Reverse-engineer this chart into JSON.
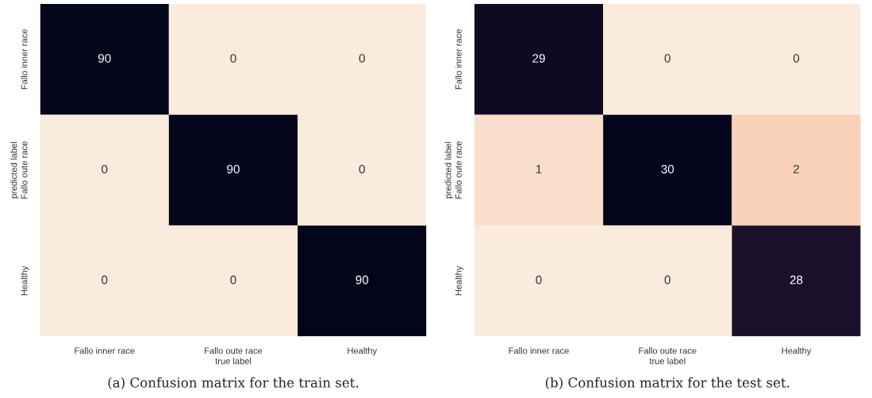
{
  "chart_data": [
    {
      "type": "heatmap",
      "categories": [
        "Fallo inner race",
        "Fallo oute race",
        "Healthy"
      ],
      "y_categories": [
        "Fallo inner race",
        "Fallo oute race",
        "Healthy"
      ],
      "xlabel": "true label",
      "ylabel": "predicted label",
      "data_labels": true,
      "cells": [
        [
          90,
          0,
          0
        ],
        [
          0,
          90,
          0
        ],
        [
          0,
          0,
          90
        ]
      ],
      "annotations": [
        "(a) Confusion matrix for the train set."
      ]
    },
    {
      "type": "heatmap",
      "categories": [
        "Fallo inner race",
        "Fallo oute race",
        "Healthy"
      ],
      "y_categories": [
        "Fallo inner race",
        "Fallo oute race",
        "Healthy"
      ],
      "xlabel": "true label",
      "ylabel": "predicted label",
      "data_labels": true,
      "cells": [
        [
          29,
          0,
          0
        ],
        [
          1,
          30,
          2
        ],
        [
          0,
          0,
          28
        ]
      ],
      "annotations": [
        "(b) Confusion matrix for the test set."
      ]
    }
  ]
}
